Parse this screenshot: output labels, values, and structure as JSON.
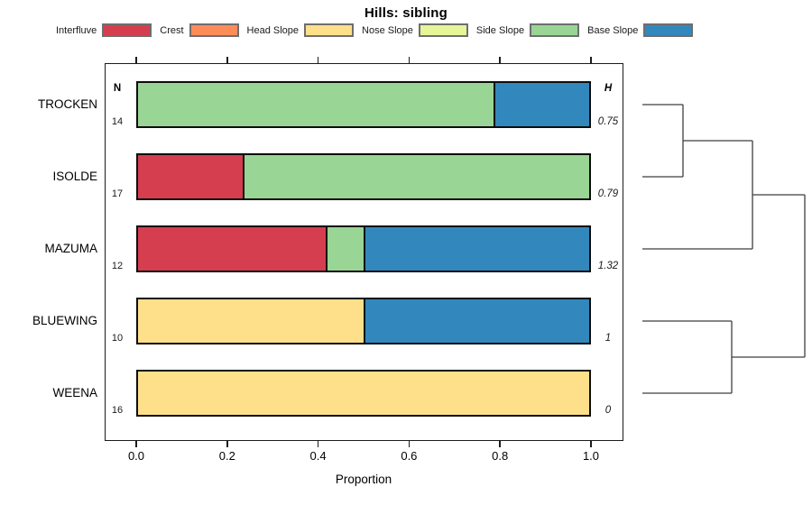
{
  "chart_data": {
    "type": "bar",
    "variant": "stacked-horizontal-proportions-with-dendrogram",
    "title": "Hills: sibling",
    "xlabel": "Proportion",
    "xlim": [
      0,
      1
    ],
    "xticks": [
      "0.0",
      "0.2",
      "0.4",
      "0.6",
      "0.8",
      "1.0"
    ],
    "grid": false,
    "legend_position": "top",
    "n_header": "N",
    "h_header": "H",
    "classes": [
      {
        "label": "Interfluve",
        "color": "#d53e4f"
      },
      {
        "label": "Crest",
        "color": "#fc8d59"
      },
      {
        "label": "Head Slope",
        "color": "#fee08b"
      },
      {
        "label": "Nose Slope",
        "color": "#e6f598"
      },
      {
        "label": "Side Slope",
        "color": "#99d594"
      },
      {
        "label": "Base Slope",
        "color": "#3288bd"
      }
    ],
    "rows": [
      {
        "name": "TROCKEN",
        "n": "14",
        "h": "0.75",
        "segments": [
          {
            "class": "Side Slope",
            "fraction": 0.786
          },
          {
            "class": "Base Slope",
            "fraction": 0.214
          }
        ]
      },
      {
        "name": "ISOLDE",
        "n": "17",
        "h": "0.79",
        "segments": [
          {
            "class": "Interfluve",
            "fraction": 0.235
          },
          {
            "class": "Side Slope",
            "fraction": 0.765
          }
        ]
      },
      {
        "name": "MAZUMA",
        "n": "12",
        "h": "1.32",
        "segments": [
          {
            "class": "Interfluve",
            "fraction": 0.417
          },
          {
            "class": "Side Slope",
            "fraction": 0.083
          },
          {
            "class": "Base Slope",
            "fraction": 0.5
          }
        ]
      },
      {
        "name": "BLUEWING",
        "n": "10",
        "h": "1",
        "segments": [
          {
            "class": "Head Slope",
            "fraction": 0.5
          },
          {
            "class": "Base Slope",
            "fraction": 0.5
          }
        ]
      },
      {
        "name": "WEENA",
        "n": "16",
        "h": "0",
        "segments": [
          {
            "class": "Head Slope",
            "fraction": 1.0
          }
        ]
      }
    ],
    "dendrogram": {
      "orientation": "right",
      "root": {
        "height": 1.0,
        "children": [
          {
            "height": 0.678,
            "children": [
              {
                "height": 0.25,
                "children": [
                  {
                    "leaf": "TROCKEN"
                  },
                  {
                    "leaf": "ISOLDE"
                  }
                ]
              },
              {
                "leaf": "MAZUMA"
              }
            ]
          },
          {
            "height": 0.55,
            "children": [
              {
                "leaf": "BLUEWING"
              },
              {
                "leaf": "WEENA"
              }
            ]
          }
        ]
      }
    }
  }
}
